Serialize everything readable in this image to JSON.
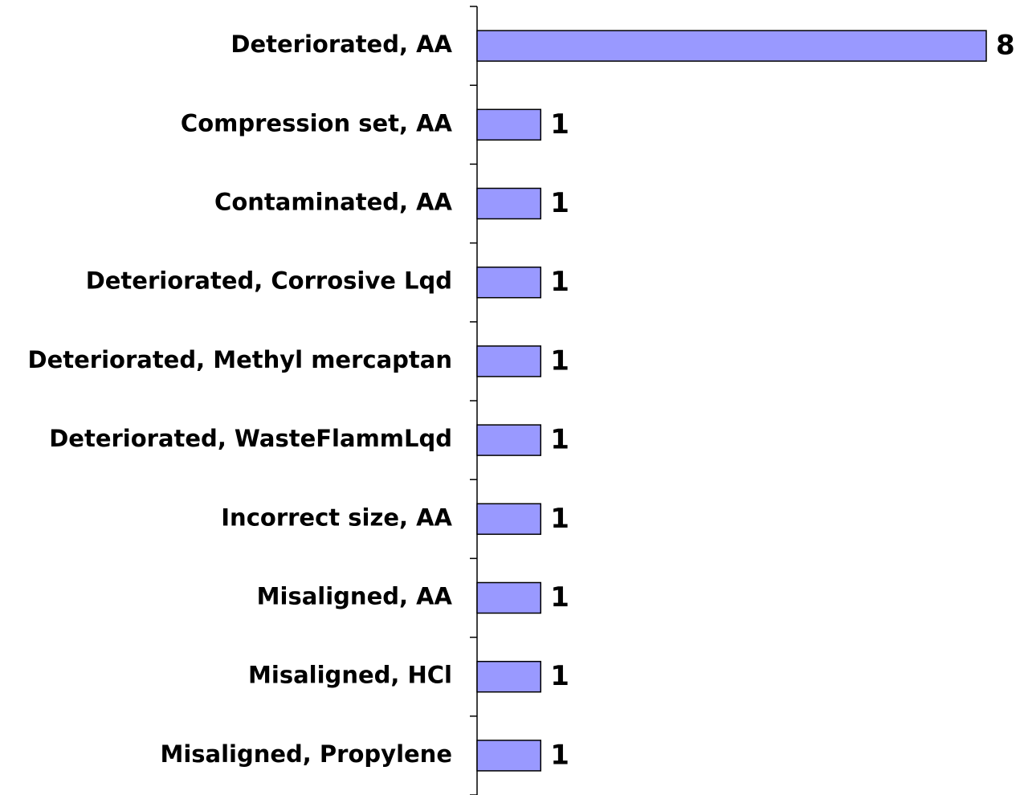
{
  "chart_data": {
    "type": "bar",
    "orientation": "horizontal",
    "categories": [
      "Deteriorated, AA",
      "Compression set, AA",
      "Contaminated, AA",
      "Deteriorated, Corrosive Lqd",
      "Deteriorated, Methyl mercaptan",
      "Deteriorated, WasteFlammLqd",
      "Incorrect size, AA",
      "Misaligned, AA",
      "Misaligned, HCl",
      "Misaligned, Propylene"
    ],
    "values": [
      8,
      1,
      1,
      1,
      1,
      1,
      1,
      1,
      1,
      1
    ],
    "color": "#9999ff"
  }
}
